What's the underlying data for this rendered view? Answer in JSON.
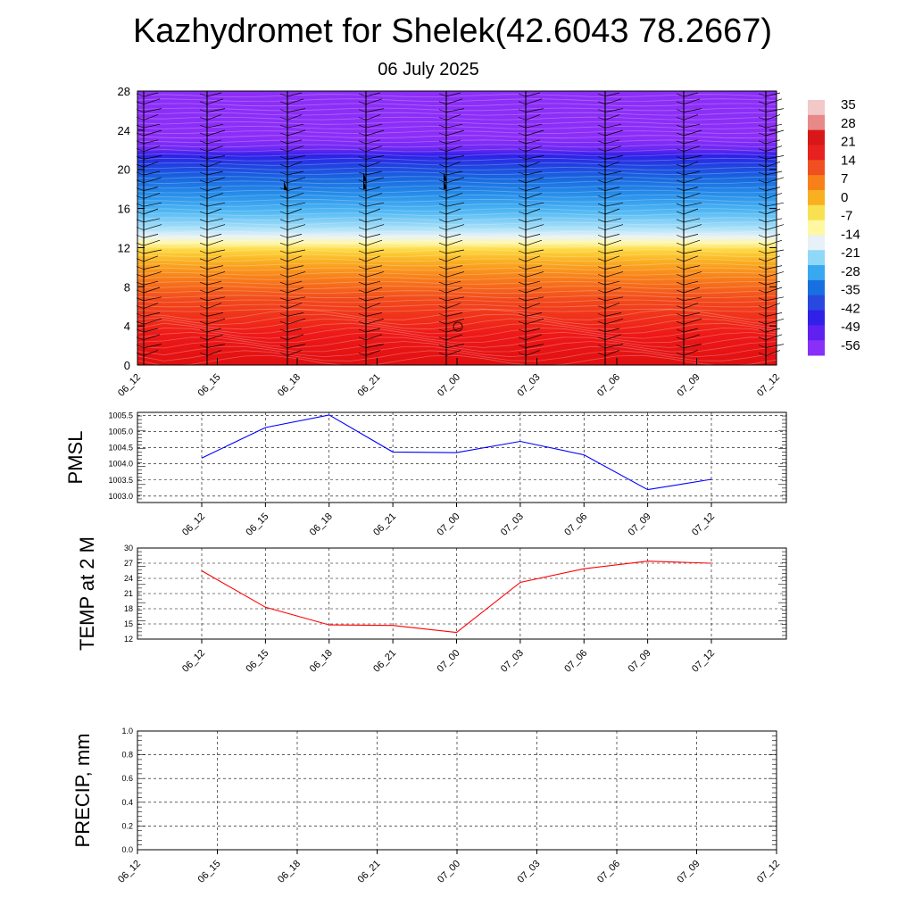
{
  "header": {
    "title": "Kazhydromet for Shelek(42.6043 78.2667)",
    "date": "06 July 2025"
  },
  "colorbar": {
    "labels": [
      "35",
      "28",
      "21",
      "14",
      "7",
      "0",
      "-7",
      "-14",
      "-21",
      "-28",
      "-35",
      "-42",
      "-49",
      "-56"
    ],
    "colors": [
      "#f2c8c8",
      "#e88888",
      "#d81818",
      "#e82020",
      "#f05020",
      "#f88018",
      "#f8b020",
      "#f8e050",
      "#fff8a0",
      "#e8f0f8",
      "#90d8f8",
      "#38a8f0",
      "#1870e0",
      "#2848e0",
      "#3020e8",
      "#6020f0",
      "#8830f8"
    ]
  },
  "chart_data": [
    {
      "type": "heatmap",
      "name": "temperature-cross-section",
      "x": [
        "06_12",
        "06_15",
        "06_18",
        "06_21",
        "07_00",
        "07_03",
        "07_06",
        "07_09",
        "07_12"
      ],
      "ylim": [
        0,
        28
      ],
      "yticks": [
        0,
        4,
        8,
        12,
        16,
        20,
        24,
        28
      ],
      "color_range": [
        -56,
        35
      ]
    },
    {
      "type": "line",
      "name": "pmsl",
      "ylabel": "PMSL",
      "x": [
        "06_12",
        "06_15",
        "06_18",
        "06_21",
        "07_00",
        "07_03",
        "07_06",
        "07_09",
        "07_12"
      ],
      "series": [
        {
          "values": [
            1004.18,
            1005.13,
            1005.52,
            1004.37,
            1004.35,
            1004.7,
            1004.28,
            1003.2,
            1003.52
          ],
          "color": "#0000ff"
        }
      ],
      "ylim": [
        1002.8,
        1005.6
      ],
      "yticks": [
        "1003.0",
        "1003.5",
        "1004.0",
        "1004.5",
        "1005.0",
        "1005.5"
      ],
      "grid": true
    },
    {
      "type": "line",
      "name": "temp-2m",
      "ylabel": "TEMP at 2 M",
      "x": [
        "06_12",
        "06_15",
        "06_18",
        "06_21",
        "07_00",
        "07_03",
        "07_06",
        "07_09",
        "07_12"
      ],
      "series": [
        {
          "values": [
            25.5,
            18.3,
            14.8,
            14.7,
            13.3,
            23.2,
            25.9,
            27.4,
            27.0
          ],
          "color": "#ff0000"
        }
      ],
      "ylim": [
        12,
        30
      ],
      "yticks": [
        "12",
        "15",
        "18",
        "21",
        "24",
        "27",
        "30"
      ],
      "grid": true
    },
    {
      "type": "line",
      "name": "precip",
      "ylabel": "PRECIP, mm",
      "x": [
        "06_12",
        "06_15",
        "06_18",
        "06_21",
        "07_00",
        "07_03",
        "07_06",
        "07_09",
        "07_12"
      ],
      "series": [
        {
          "values": [
            0,
            0,
            0,
            0,
            0,
            0,
            0,
            0,
            0
          ],
          "color": "#006400"
        }
      ],
      "ylim": [
        0,
        1
      ],
      "yticks": [
        "0.0",
        "0.2",
        "0.4",
        "0.6",
        "0.8",
        "1.0"
      ],
      "grid": true
    }
  ]
}
